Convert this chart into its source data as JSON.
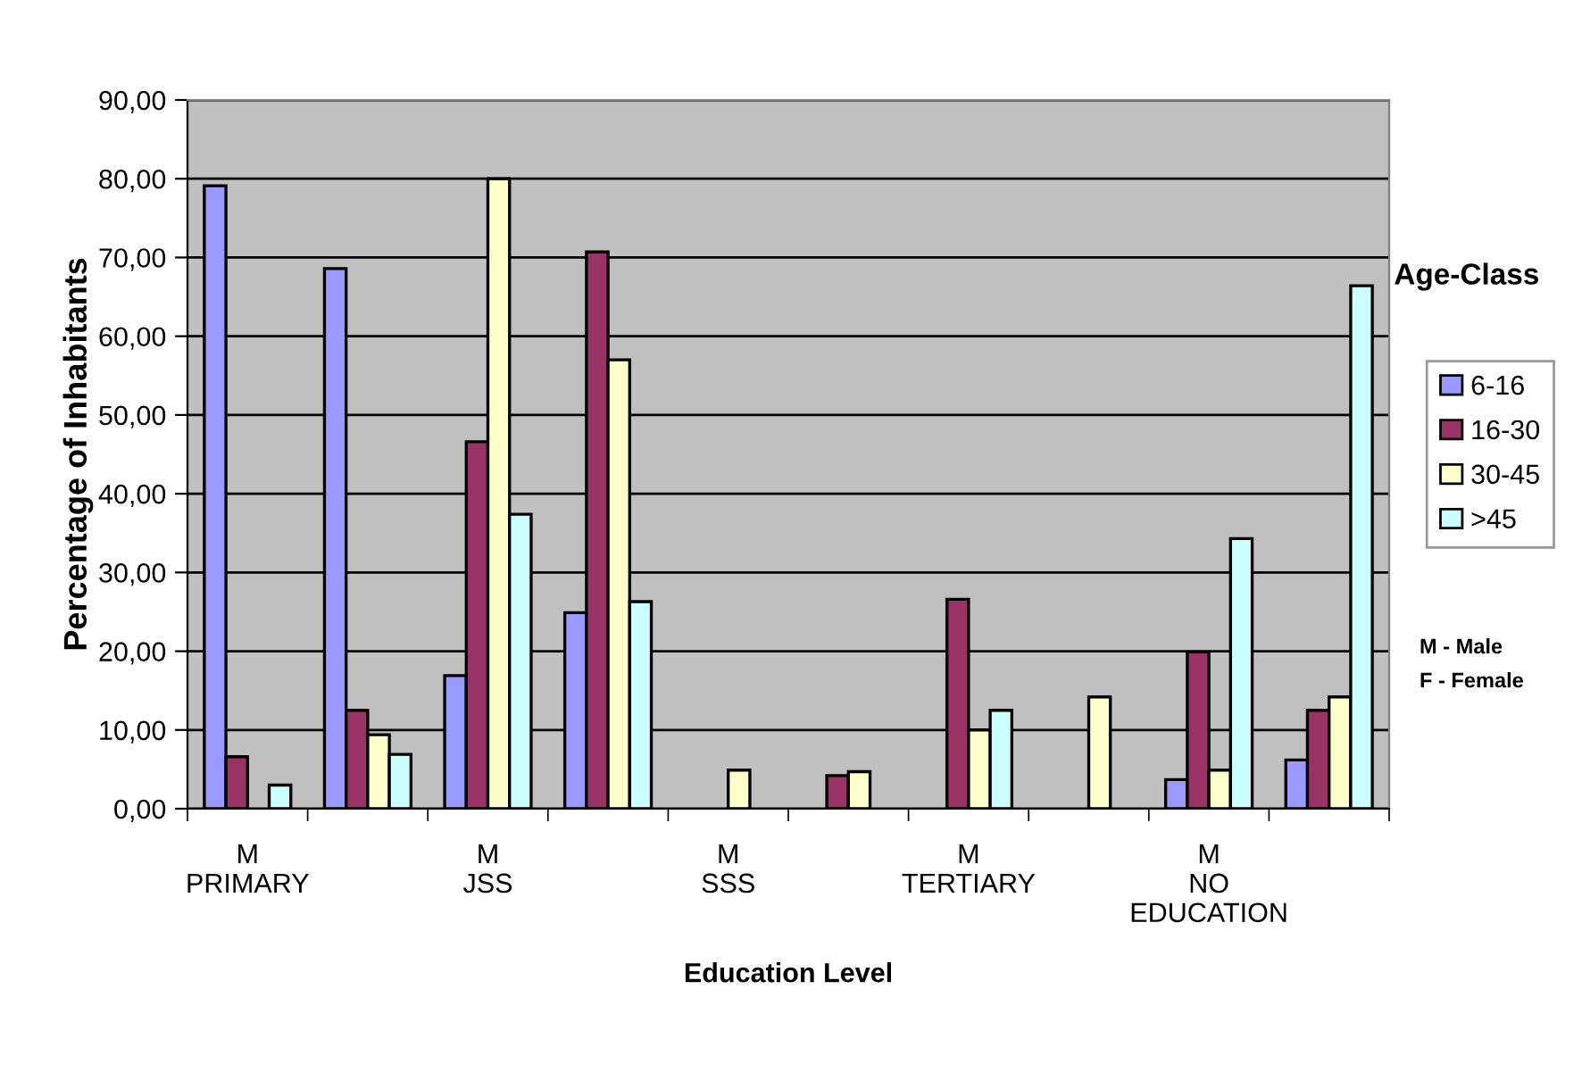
{
  "chart_data": {
    "type": "bar",
    "xlabel": "Education Level",
    "ylabel": "Percentage of Inhabitants",
    "legend_title": "Age-Class",
    "categories": [
      "M\nPRIMARY",
      null,
      "M\nJSS",
      null,
      "M\nSSS",
      null,
      "M\nTERTIARY",
      null,
      "M\nNO\nEDUCATION",
      null
    ],
    "series": [
      {
        "name": "6-16",
        "color": "#9999ff",
        "values": [
          79.1,
          68.6,
          16.9,
          24.9,
          null,
          null,
          null,
          null,
          3.7,
          6.2
        ]
      },
      {
        "name": "16-30",
        "color": "#993366",
        "values": [
          6.6,
          12.5,
          46.6,
          70.7,
          null,
          4.2,
          26.6,
          null,
          19.9,
          12.5
        ]
      },
      {
        "name": "30-45",
        "color": "#ffffcc",
        "values": [
          null,
          9.4,
          80.0,
          57.0,
          4.9,
          4.7,
          10.0,
          14.2,
          4.9,
          14.2
        ]
      },
      {
        "name": ">45",
        "color": "#ccffff",
        "values": [
          3.0,
          6.9,
          37.4,
          26.3,
          null,
          null,
          12.5,
          null,
          34.3,
          66.4
        ]
      }
    ],
    "ylim": [
      0,
      90
    ],
    "yticks": [
      {
        "value": 0,
        "label": "0,00"
      },
      {
        "value": 10,
        "label": "10,00"
      },
      {
        "value": 20,
        "label": "20,00"
      },
      {
        "value": 30,
        "label": "30,00"
      },
      {
        "value": 40,
        "label": "40,00"
      },
      {
        "value": 50,
        "label": "50,00"
      },
      {
        "value": 60,
        "label": "60,00"
      },
      {
        "value": 70,
        "label": "70,00"
      },
      {
        "value": 80,
        "label": "80,00"
      },
      {
        "value": 90,
        "label": "90,00"
      }
    ],
    "grid": "y",
    "legend": "right",
    "annotations": [
      "M - Male",
      "F - Female"
    ]
  }
}
